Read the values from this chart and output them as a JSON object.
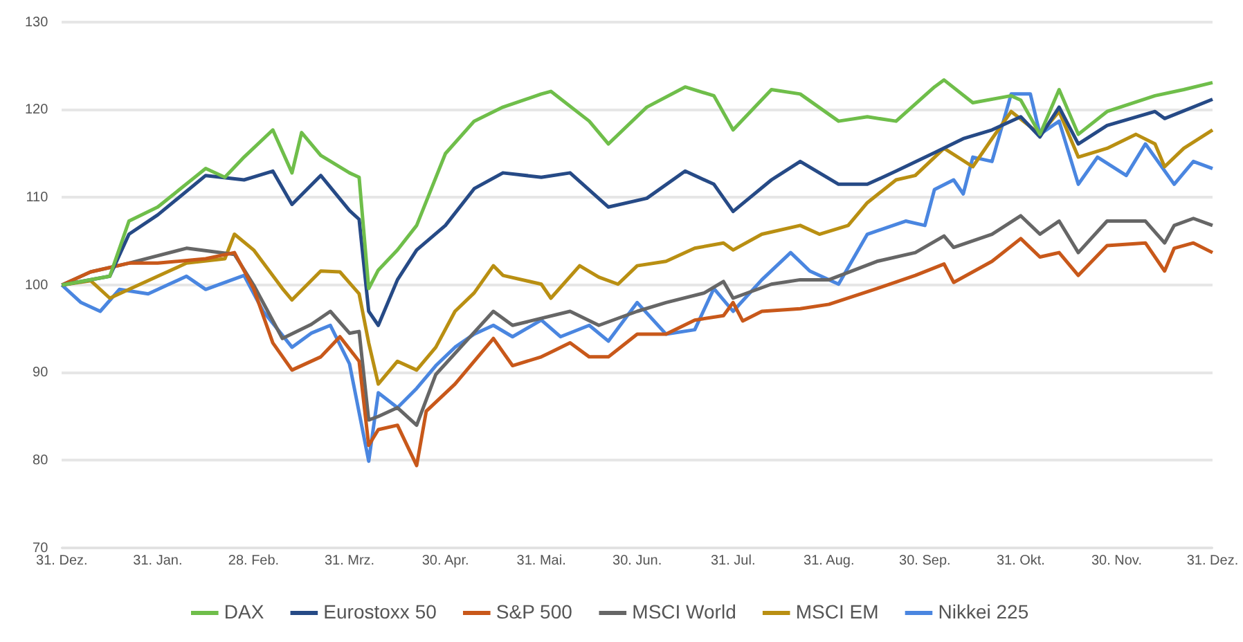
{
  "chart_data": {
    "type": "line",
    "ylim": [
      70,
      130
    ],
    "categories": [
      "31. Dez.",
      null,
      null,
      null,
      null,
      null,
      null,
      null,
      null,
      null,
      "31. Jan.",
      null,
      null,
      null,
      null,
      null,
      null,
      null,
      null,
      null,
      "28. Feb.",
      null,
      null,
      null,
      null,
      null,
      null,
      null,
      null,
      null,
      "31. Mrz.",
      null,
      null,
      null,
      null,
      null,
      null,
      null,
      null,
      null,
      "30. Apr.",
      null,
      null,
      null,
      null,
      null,
      null,
      null,
      null,
      null,
      "31. Mai.",
      null,
      null,
      null,
      null,
      null,
      null,
      null,
      null,
      null,
      "30. Jun.",
      null,
      null,
      null,
      null,
      null,
      null,
      null,
      null,
      null,
      "31. Jul.",
      null,
      null,
      null,
      null,
      null,
      null,
      null,
      null,
      null,
      "31. Aug.",
      null,
      null,
      null,
      null,
      null,
      null,
      null,
      null,
      null,
      "30. Sep.",
      null,
      null,
      null,
      null,
      null,
      null,
      null,
      null,
      null,
      "31. Okt.",
      null,
      null,
      null,
      null,
      null,
      null,
      null,
      null,
      null,
      "30. Nov.",
      null,
      null,
      null,
      null,
      null,
      null,
      null,
      null,
      null,
      "31. Dez."
    ],
    "yticks": [
      70,
      80,
      90,
      100,
      110,
      120,
      130
    ],
    "grid": "y",
    "legend": "bottom",
    "marker": "none",
    "line_style": "solid",
    "series": [
      {
        "name": "DAX",
        "color": "#6fbe4a",
        "values": [
          100,
          null,
          null,
          null,
          null,
          101,
          null,
          107.3,
          null,
          null,
          108.9,
          null,
          null,
          null,
          null,
          113.3,
          null,
          112.3,
          null,
          114.6,
          null,
          null,
          117.7,
          null,
          112.8,
          117.4,
          null,
          114.8,
          null,
          null,
          112.8,
          112.3,
          99.6,
          101.7,
          null,
          104,
          null,
          106.8,
          null,
          null,
          115,
          null,
          null,
          118.7,
          null,
          null,
          120.3,
          null,
          null,
          null,
          121.8,
          122.1,
          null,
          null,
          null,
          118.7,
          null,
          116.1,
          null,
          null,
          null,
          120.3,
          null,
          null,
          null,
          122.6,
          null,
          null,
          121.6,
          null,
          117.7,
          null,
          null,
          null,
          122.3,
          null,
          null,
          121.8,
          null,
          null,
          null,
          118.7,
          null,
          null,
          119.2,
          null,
          null,
          118.7,
          null,
          null,
          null,
          122.6,
          123.4,
          null,
          null,
          120.8,
          null,
          null,
          null,
          121.6,
          121.1,
          null,
          117.2,
          null,
          122.3,
          null,
          117.2,
          null,
          null,
          119.8,
          null,
          null,
          null,
          null,
          121.6,
          null,
          null,
          122.3,
          null,
          null,
          123.1
        ]
      },
      {
        "name": "Eurostoxx 50",
        "color": "#264a86",
        "values": [
          100,
          null,
          null,
          null,
          null,
          101,
          null,
          105.8,
          null,
          null,
          108,
          null,
          null,
          null,
          null,
          112.5,
          null,
          null,
          null,
          112,
          null,
          null,
          113,
          null,
          109.2,
          null,
          null,
          112.5,
          null,
          null,
          108.5,
          107.5,
          97,
          95.4,
          null,
          100.6,
          null,
          104,
          null,
          null,
          106.8,
          null,
          null,
          111,
          null,
          null,
          112.8,
          null,
          null,
          null,
          112.3,
          null,
          null,
          112.8,
          null,
          null,
          null,
          108.9,
          null,
          null,
          null,
          109.9,
          null,
          null,
          null,
          113,
          null,
          null,
          111.5,
          null,
          108.4,
          null,
          null,
          null,
          112,
          null,
          null,
          114.1,
          null,
          null,
          null,
          111.5,
          null,
          null,
          111.5,
          null,
          null,
          113,
          null,
          null,
          null,
          115.1,
          null,
          null,
          116.7,
          null,
          null,
          117.7,
          null,
          null,
          119.2,
          null,
          116.9,
          null,
          120.3,
          null,
          116.1,
          null,
          null,
          118.2,
          null,
          null,
          null,
          null,
          119.8,
          119,
          null,
          null,
          null,
          null,
          121.2
        ]
      },
      {
        "name": "S&P 500",
        "color": "#c8581a",
        "values": [
          100,
          null,
          null,
          101.5,
          null,
          null,
          null,
          102.5,
          null,
          null,
          102.5,
          null,
          null,
          null,
          null,
          103,
          null,
          null,
          103.7,
          null,
          99.6,
          null,
          93.4,
          null,
          90.3,
          null,
          null,
          91.8,
          null,
          94.1,
          null,
          91.3,
          81.7,
          83.5,
          null,
          84,
          null,
          79.4,
          85.6,
          null,
          null,
          88.7,
          null,
          null,
          null,
          93.9,
          null,
          90.8,
          null,
          null,
          91.8,
          null,
          null,
          93.4,
          null,
          91.8,
          null,
          91.8,
          null,
          null,
          94.4,
          null,
          null,
          94.4,
          null,
          null,
          96,
          null,
          null,
          96.5,
          98,
          95.9,
          null,
          97,
          null,
          null,
          null,
          97.3,
          null,
          null,
          97.8,
          null,
          null,
          null,
          null,
          99.6,
          null,
          null,
          null,
          101.1,
          null,
          null,
          102.4,
          100.3,
          null,
          null,
          null,
          102.7,
          null,
          null,
          105.3,
          null,
          103.2,
          null,
          103.7,
          null,
          101.1,
          null,
          null,
          104.5,
          null,
          null,
          null,
          104.8,
          null,
          101.6,
          104.2,
          null,
          104.8,
          null,
          103.7
        ]
      },
      {
        "name": "MSCI World",
        "color": "#666666",
        "values": [
          100,
          null,
          null,
          101.5,
          null,
          null,
          null,
          102.5,
          null,
          null,
          null,
          null,
          null,
          104.2,
          null,
          null,
          null,
          null,
          103.5,
          null,
          100,
          null,
          null,
          93.9,
          null,
          null,
          95.5,
          null,
          97,
          null,
          94.5,
          94.7,
          84.6,
          85,
          null,
          86,
          null,
          84,
          null,
          89.8,
          null,
          null,
          93.4,
          null,
          null,
          97,
          null,
          95.4,
          null,
          null,
          null,
          null,
          null,
          97,
          null,
          null,
          95.4,
          null,
          null,
          null,
          97,
          null,
          null,
          98,
          null,
          null,
          null,
          99.1,
          null,
          100.4,
          98.5,
          null,
          null,
          null,
          100.1,
          null,
          null,
          100.6,
          null,
          null,
          100.6,
          null,
          null,
          null,
          null,
          102.7,
          null,
          null,
          null,
          103.7,
          null,
          null,
          105.6,
          104.3,
          null,
          null,
          null,
          105.8,
          null,
          null,
          107.9,
          null,
          105.8,
          null,
          107.3,
          null,
          103.7,
          null,
          null,
          107.3,
          null,
          null,
          null,
          107.3,
          null,
          104.8,
          106.8,
          null,
          107.6,
          null,
          106.8
        ]
      },
      {
        "name": "MSCI EM",
        "color": "#b98f12",
        "values": [
          100,
          null,
          null,
          100.5,
          null,
          98.5,
          null,
          99.5,
          null,
          null,
          null,
          null,
          null,
          102.5,
          null,
          null,
          null,
          103,
          105.8,
          null,
          104,
          null,
          null,
          99.6,
          98.3,
          null,
          null,
          101.6,
          null,
          101.5,
          null,
          99,
          93.4,
          88.7,
          null,
          91.3,
          null,
          90.3,
          null,
          92.9,
          null,
          97,
          null,
          99.1,
          null,
          102.2,
          101.1,
          null,
          null,
          null,
          100.1,
          98.5,
          null,
          null,
          102.2,
          null,
          100.9,
          null,
          100.1,
          null,
          102.2,
          null,
          null,
          102.7,
          null,
          null,
          104.2,
          null,
          null,
          104.8,
          104,
          null,
          null,
          105.8,
          null,
          null,
          null,
          106.8,
          null,
          105.8,
          null,
          null,
          106.8,
          null,
          109.4,
          null,
          null,
          112,
          null,
          112.5,
          null,
          null,
          115.6,
          null,
          null,
          113.5,
          null,
          116.7,
          null,
          119.8,
          null,
          null,
          117.2,
          null,
          119.8,
          null,
          114.6,
          null,
          null,
          115.6,
          null,
          null,
          117.2,
          null,
          116.1,
          113.5,
          null,
          115.6,
          null,
          null,
          117.7
        ]
      },
      {
        "name": "Nikkei 225",
        "color": "#4a86e0",
        "values": [
          100,
          null,
          98,
          null,
          97,
          null,
          99.5,
          null,
          null,
          99,
          null,
          100,
          null,
          101,
          null,
          99.5,
          null,
          null,
          null,
          101.1,
          null,
          97,
          null,
          null,
          92.9,
          null,
          94.5,
          null,
          95.4,
          null,
          91,
          null,
          79.9,
          87.7,
          null,
          86,
          null,
          88.2,
          null,
          90.8,
          null,
          92.9,
          null,
          94.4,
          null,
          95.4,
          null,
          94.1,
          null,
          null,
          96,
          null,
          94.1,
          null,
          null,
          95.4,
          null,
          93.6,
          null,
          null,
          98,
          null,
          null,
          94.4,
          null,
          null,
          94.9,
          null,
          99.6,
          null,
          97,
          null,
          null,
          100.6,
          null,
          null,
          103.7,
          null,
          101.6,
          null,
          null,
          100.1,
          null,
          null,
          105.8,
          null,
          null,
          null,
          107.3,
          null,
          106.8,
          110.9,
          null,
          112,
          110.4,
          114.6,
          null,
          114.1,
          null,
          121.8,
          null,
          121.8,
          117.2,
          null,
          118.7,
          null,
          111.5,
          null,
          114.6,
          null,
          null,
          112.5,
          null,
          116.1,
          null,
          null,
          111.5,
          null,
          114.1,
          null,
          113.3
        ]
      }
    ]
  }
}
